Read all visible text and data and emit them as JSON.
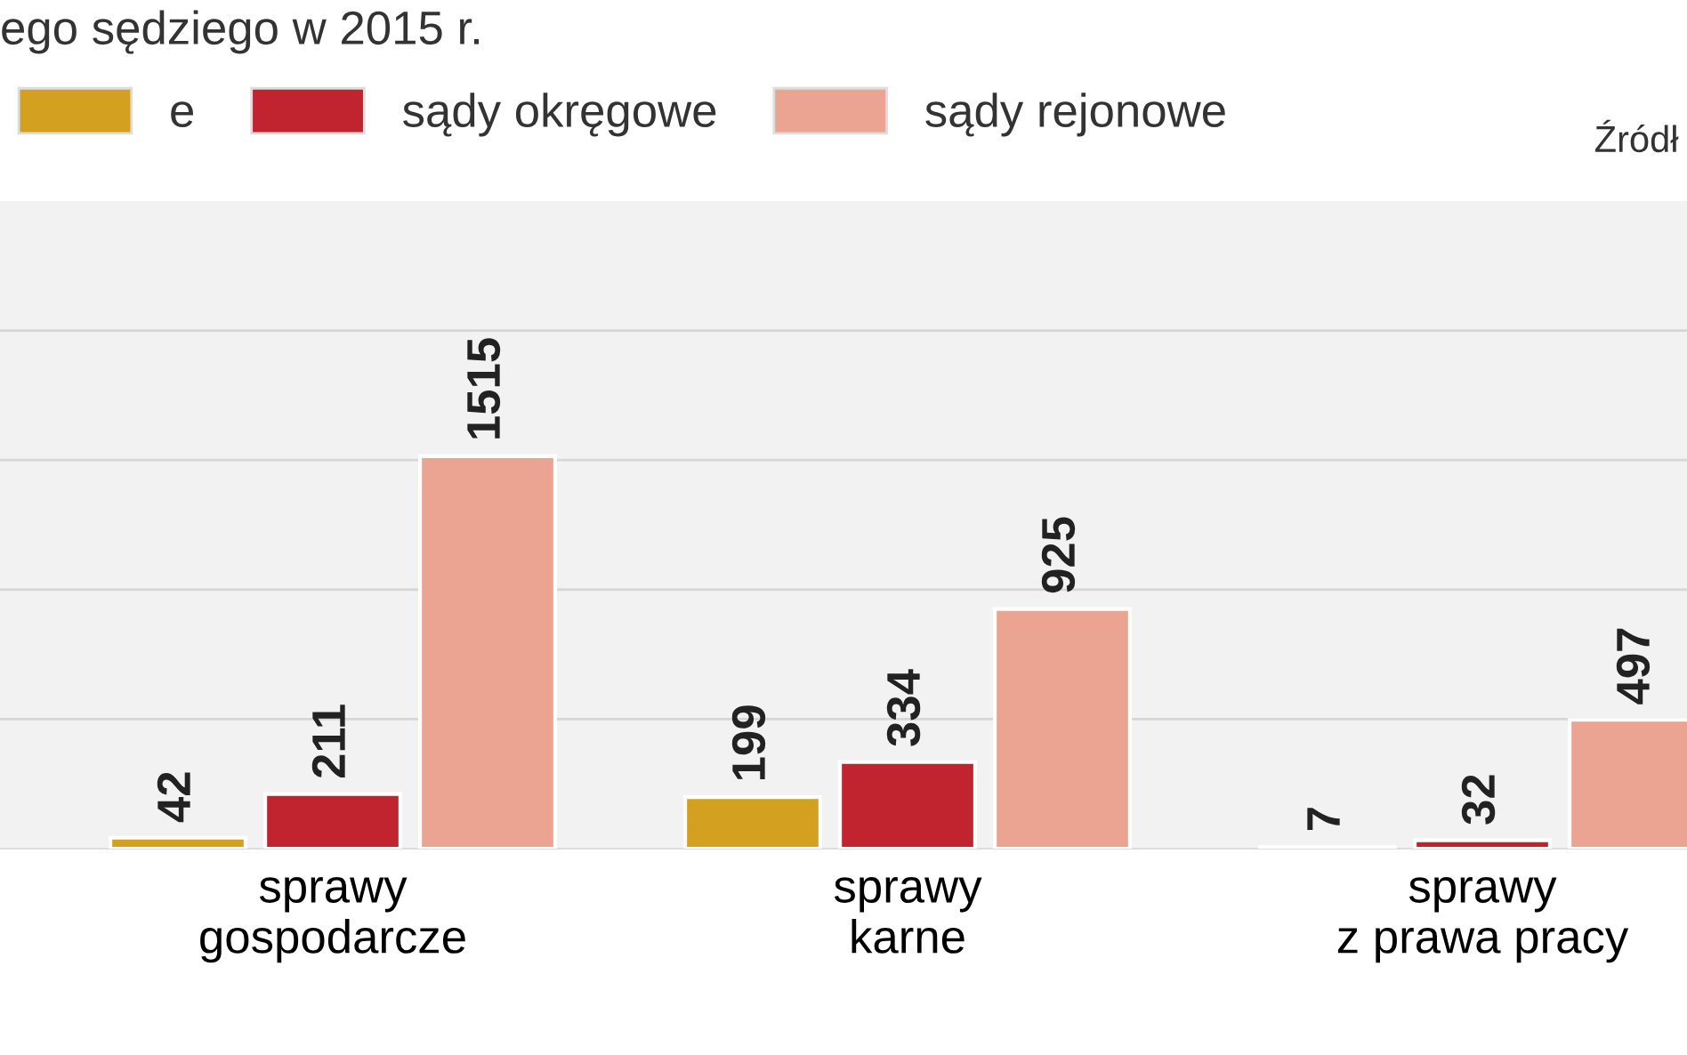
{
  "chart_data": {
    "type": "bar",
    "title": "ego sędziego w 2015 r.",
    "categories": [
      "sprawy\ngospodarcze",
      "sprawy\nkarne",
      "sprawy\nz prawa pracy"
    ],
    "series": [
      {
        "name": "e",
        "color": "#d4a020",
        "values": [
          42,
          199,
          7
        ]
      },
      {
        "name": "sądy okręgowe",
        "color": "#c1232f",
        "values": [
          211,
          334,
          32
        ]
      },
      {
        "name": "sądy rejonowe",
        "color": "#eba392",
        "values": [
          1515,
          925,
          497
        ]
      }
    ],
    "ylim": [
      0,
      2500
    ],
    "yticks": [
      {
        "value": 500,
        "label": null
      },
      {
        "value": 1000,
        "label": null
      },
      {
        "value": 1500,
        "label": null
      },
      {
        "value": 2000,
        "label": null
      }
    ],
    "tick_labels": "x",
    "grid": "y",
    "legend": "top left",
    "data_labels": true,
    "annotations": [
      "Źródł"
    ]
  }
}
